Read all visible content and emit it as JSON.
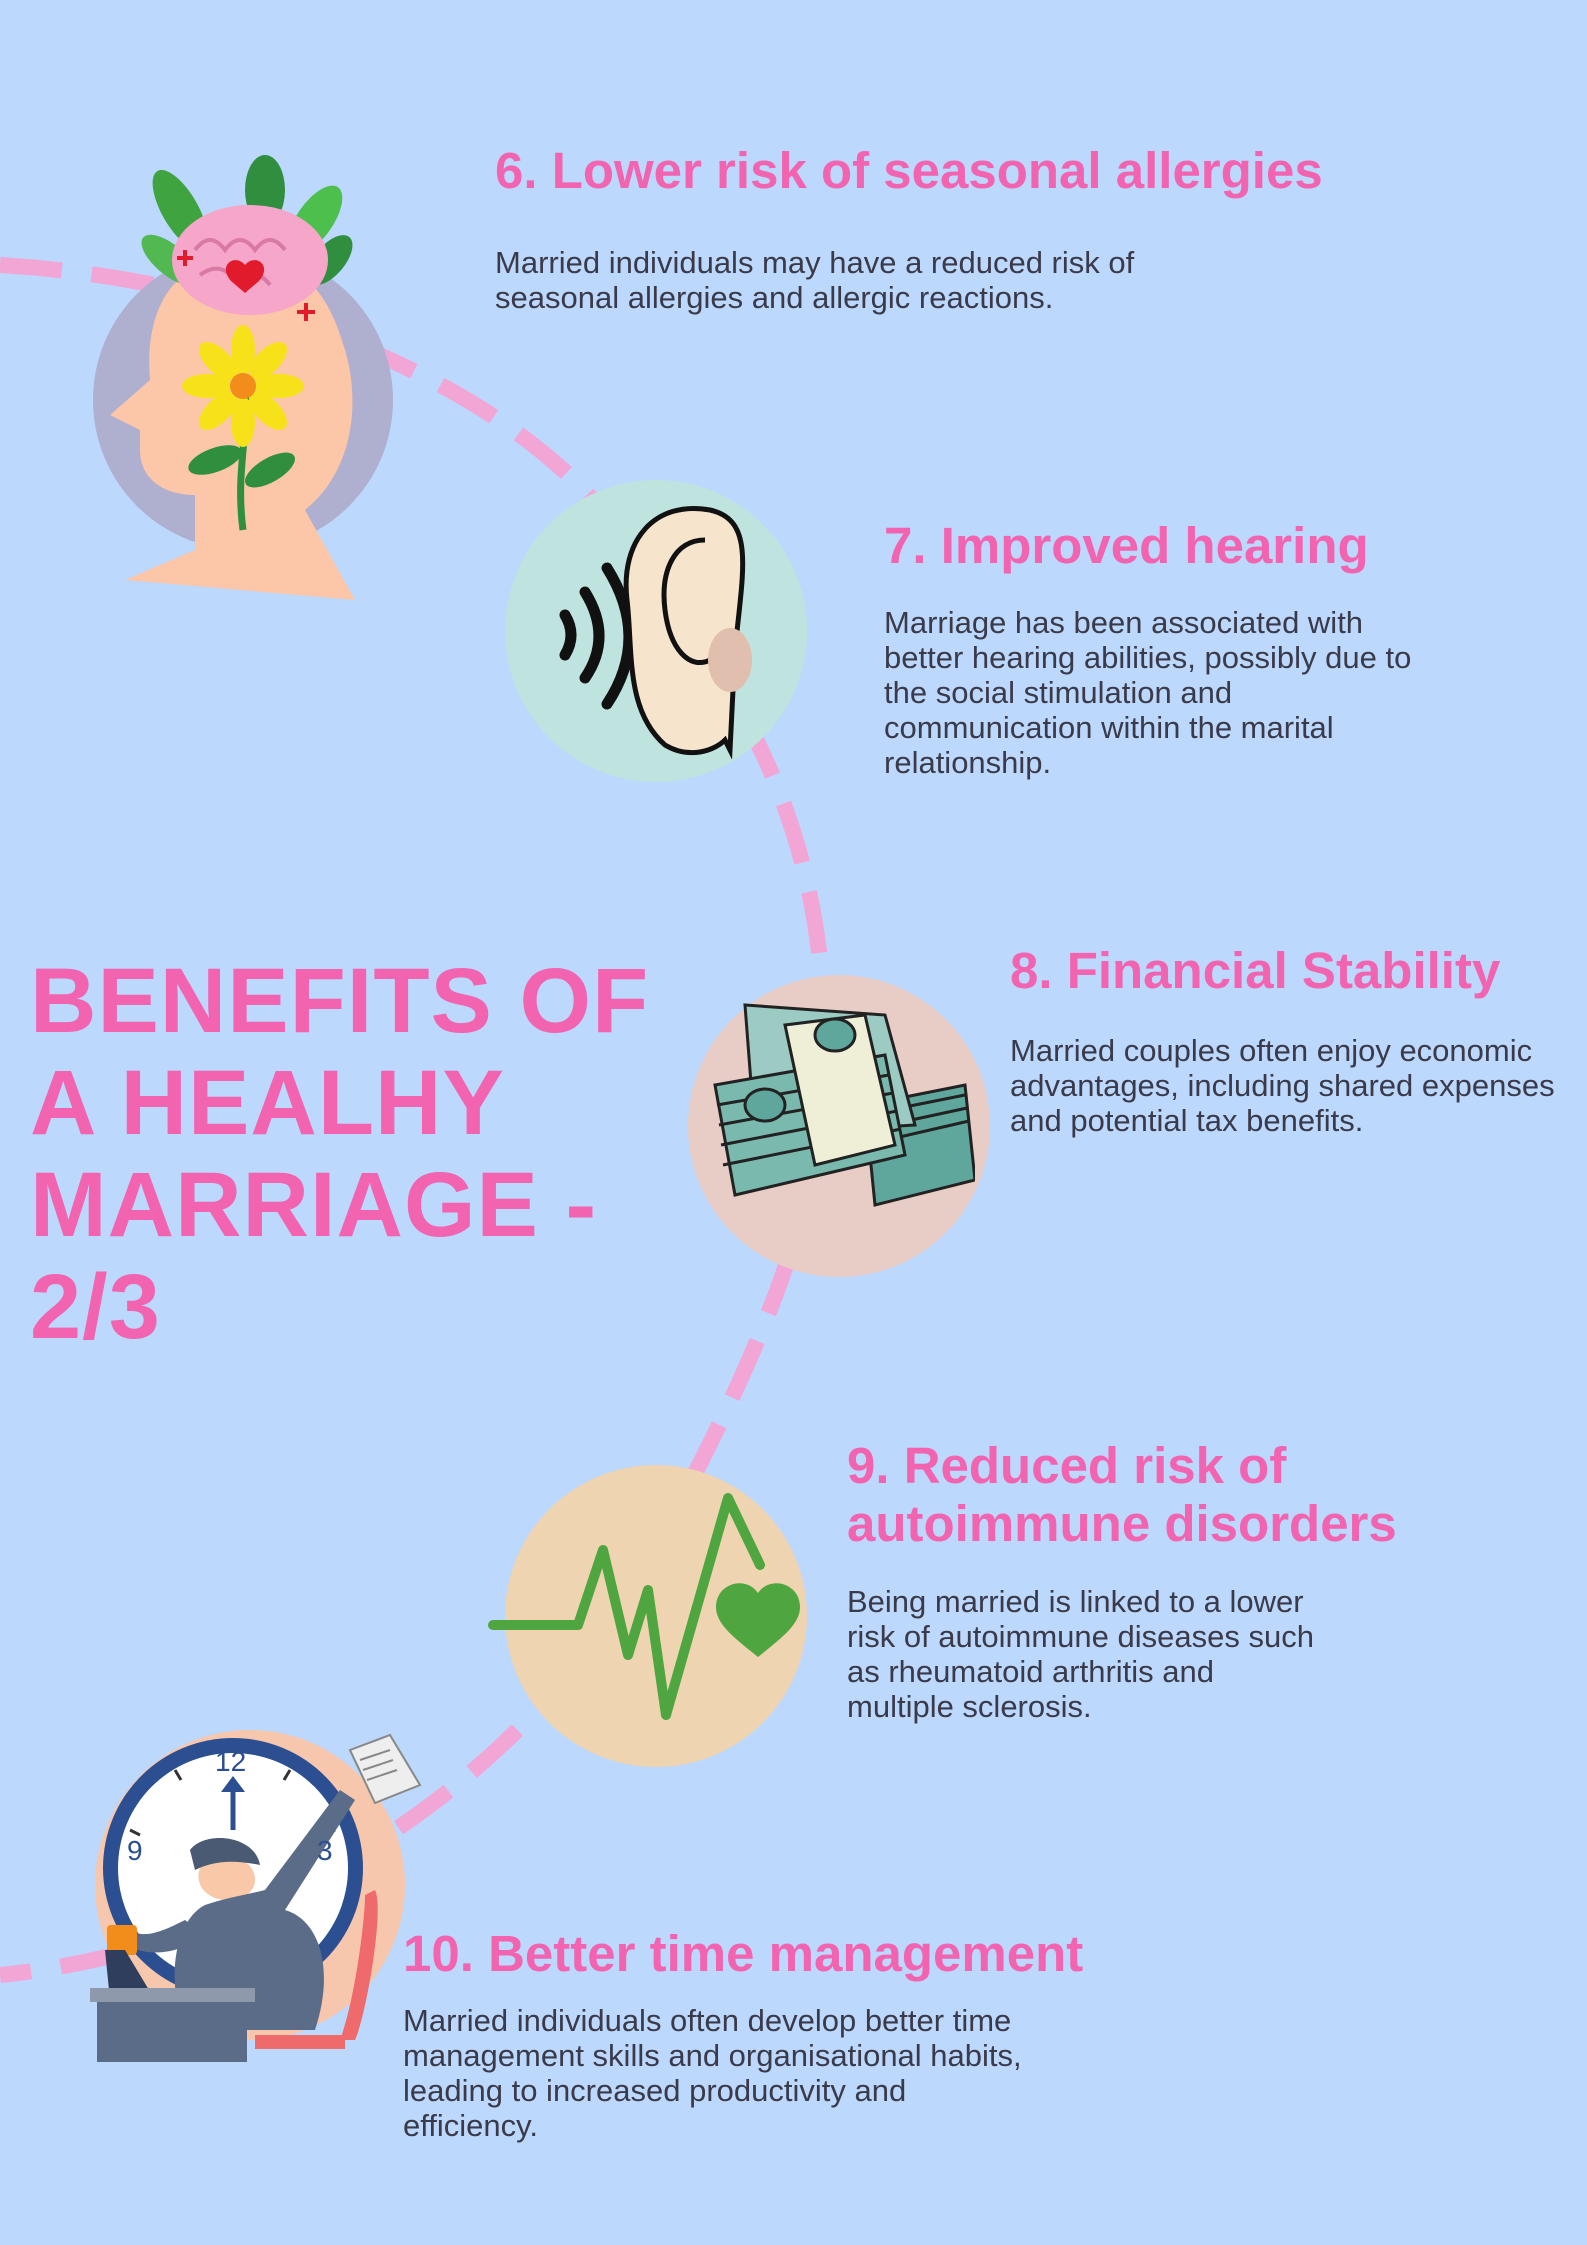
{
  "page": {
    "background": "#bcd8fc",
    "accent": "#f264b0",
    "title": "BENEFITS OF A HEALHY MARRIAGE - 2/3"
  },
  "benefits": [
    {
      "heading": "6. Lower risk of seasonal allergies",
      "body": "Married individuals may have a reduced risk of seasonal allergies and allergic reactions.",
      "icon": "head-brain-flower-icon"
    },
    {
      "heading": "7. Improved hearing",
      "body": "Marriage has been associated with better hearing abilities, possibly due to the social stimulation and communication within the marital relationship.",
      "icon": "ear-icon"
    },
    {
      "heading": "8. Financial Stability",
      "body": "Married couples often enjoy economic advantages, including shared expenses and potential tax benefits.",
      "icon": "money-stack-icon"
    },
    {
      "heading": "9. Reduced risk of autoimmune disorders",
      "body": "Being married is linked to a lower risk of autoimmune diseases such as rheumatoid arthritis and multiple sclerosis.",
      "icon": "heartbeat-icon"
    },
    {
      "heading": "10. Better time management",
      "body": "Married individuals often develop better time management skills and organisational habits, leading to increased productivity and efficiency.",
      "icon": "busy-worker-clock-icon"
    }
  ],
  "clock": {
    "label_12": "12",
    "label_9": "9",
    "label_3": "3"
  }
}
